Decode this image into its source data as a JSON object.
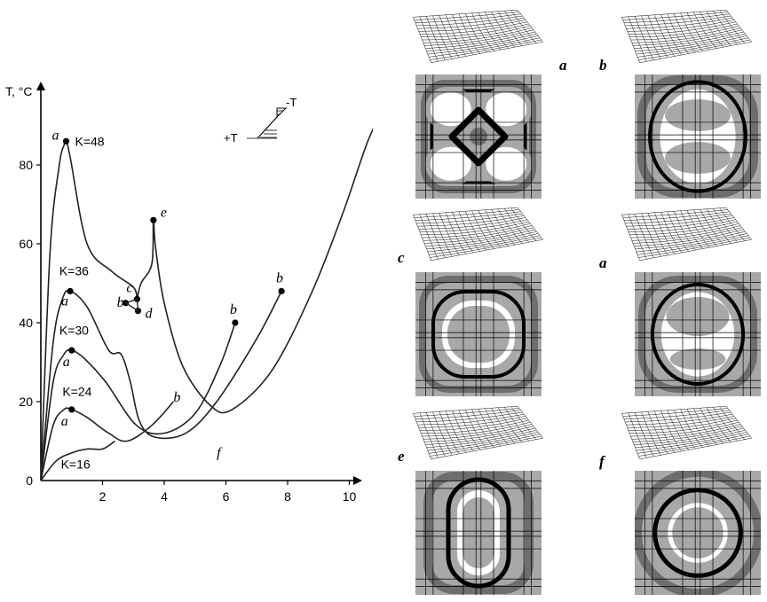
{
  "chart_data": {
    "type": "line",
    "ylabel": "T, °C",
    "xticks": [
      "2",
      "4",
      "6",
      "8",
      "10"
    ],
    "yticks": [
      "0",
      "20",
      "40",
      "60",
      "80"
    ],
    "xlim": [
      0,
      12.5
    ],
    "ylim": [
      0,
      100
    ],
    "legend_inset": {
      "minus": "-T",
      "plus": "+T"
    },
    "series": [
      {
        "label": "K=48",
        "x": [
          0,
          0.3,
          0.6,
          0.75,
          0.82,
          0.95,
          1.5,
          2.3,
          3.0,
          3.12
        ],
        "y": [
          0,
          58,
          80,
          85,
          86,
          82,
          60,
          53,
          49,
          46
        ]
      },
      {
        "label": "K=36",
        "x": [
          0,
          0.4,
          0.7,
          0.95,
          1.5,
          2.2,
          2.6,
          2.9,
          3.2,
          3.7,
          4.7,
          5.7,
          7.0,
          7.8
        ],
        "y": [
          0,
          35,
          46,
          48,
          44,
          33,
          32,
          25,
          15,
          11,
          12,
          20,
          36,
          48
        ]
      },
      {
        "label": "K=30",
        "x": [
          0,
          0.4,
          0.75,
          1.0,
          1.4,
          2.1,
          3.1,
          4.0,
          5.0,
          5.8,
          6.3
        ],
        "y": [
          0,
          25,
          32,
          33,
          31,
          25,
          14,
          12,
          17,
          29,
          40
        ]
      },
      {
        "label": "K=24",
        "x": [
          0,
          0.4,
          0.75,
          1.0,
          1.5,
          2.2,
          2.8,
          3.6,
          4.3
        ],
        "y": [
          0,
          14,
          18,
          18,
          16,
          12,
          10,
          14,
          20
        ]
      },
      {
        "label": "K=16",
        "x": [
          0,
          0.5,
          1.0,
          1.5,
          2.0,
          2.4
        ],
        "y": [
          0,
          5,
          7,
          8,
          8,
          10
        ]
      },
      {
        "label": "",
        "x": [
          3.12,
          3.25,
          3.6,
          3.65,
          3.72,
          4.0,
          4.6,
          5.5,
          6.2,
          7.5,
          8.8,
          9.8,
          10.6,
          11.2
        ],
        "y": [
          46,
          50,
          55,
          66,
          59,
          45,
          29,
          19,
          18,
          28,
          48,
          68,
          86,
          96
        ]
      }
    ],
    "points": [
      {
        "label": "a",
        "x": 0.82,
        "y": 86
      },
      {
        "label": "a",
        "x": 0.95,
        "y": 48
      },
      {
        "label": "a",
        "x": 1.0,
        "y": 33
      },
      {
        "label": "a",
        "x": 1.0,
        "y": 18
      },
      {
        "label": "b",
        "x": 11.2,
        "y": 96
      },
      {
        "label": "b",
        "x": 7.8,
        "y": 48
      },
      {
        "label": "b",
        "x": 6.3,
        "y": 40
      },
      {
        "label": "b",
        "x": 2.75,
        "y": 45
      },
      {
        "label": "c",
        "x": 3.12,
        "y": 46
      },
      {
        "label": "d",
        "x": 3.15,
        "y": 43
      },
      {
        "label": "e",
        "x": 3.65,
        "y": 66
      }
    ],
    "annotations": [
      {
        "label": "b",
        "x": 4.3,
        "y": 20
      },
      {
        "label": "f",
        "x": 5.7,
        "y": 10
      }
    ]
  },
  "panels": [
    {
      "letter": "a",
      "pattern": "four-loops"
    },
    {
      "letter": "b",
      "pattern": "figure-eight"
    },
    {
      "letter": "c",
      "pattern": "rounded-square"
    },
    {
      "letter": "a",
      "pattern": "rounded-circle-split"
    },
    {
      "letter": "e",
      "pattern": "vertical-oval"
    },
    {
      "letter": "f",
      "pattern": "concentric-circle"
    }
  ]
}
